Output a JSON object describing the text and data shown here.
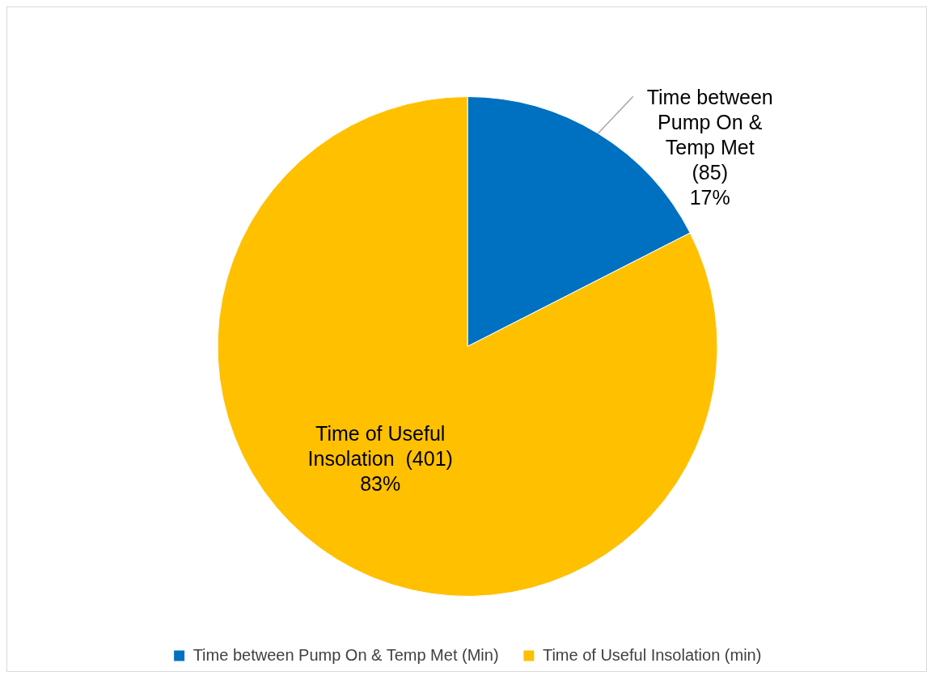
{
  "chart_data": {
    "type": "pie",
    "categories": [
      "Time between Pump On & Temp Met (Min)",
      "Time of Useful Insolation (min)"
    ],
    "values": [
      85,
      401
    ],
    "colors": [
      "#0070c0",
      "#ffc000"
    ],
    "value_labels": [
      "Time between\nPump On &\nTemp Met\n(85)\n17%",
      "Time of Useful\nInsolation  (401)\n83%"
    ],
    "legend": "bottom"
  }
}
